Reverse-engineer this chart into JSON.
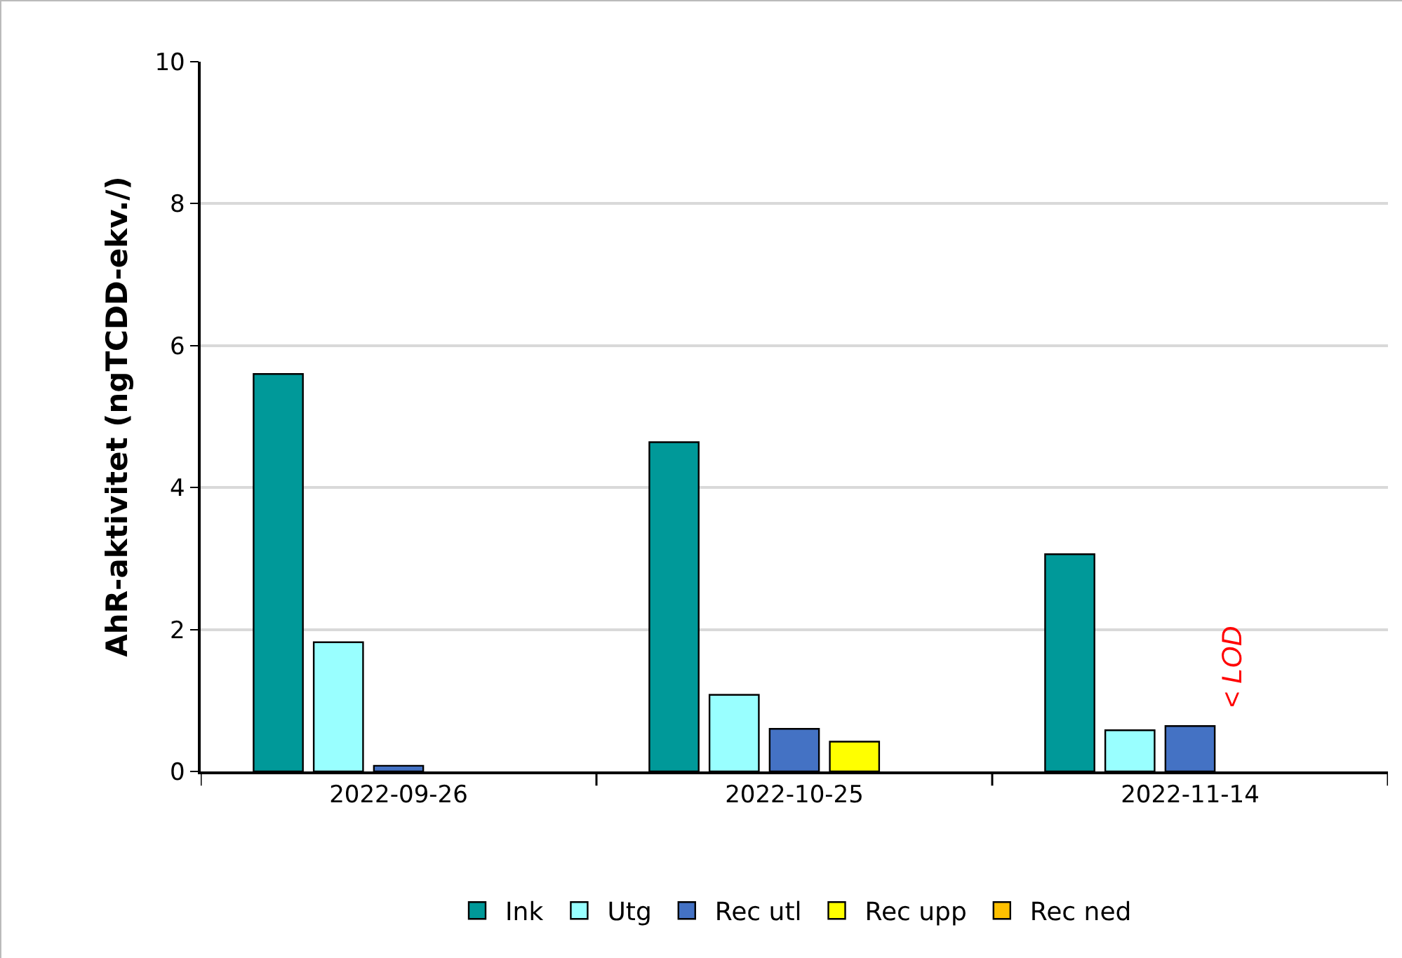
{
  "chart_data": {
    "type": "bar",
    "ylabel": "AhR-aktivitet (ngTCDD-ekv./)",
    "categories": [
      "2022-09-26",
      "2022-10-25",
      "2022-11-14"
    ],
    "series": [
      {
        "name": "Ink",
        "color": "#009999",
        "values": [
          5.6,
          4.64,
          3.06
        ]
      },
      {
        "name": "Utg",
        "color": "#99ffff",
        "values": [
          1.82,
          1.08,
          0.58
        ]
      },
      {
        "name": "Rec utl",
        "color": "#4472c4",
        "values": [
          0.08,
          0.6,
          0.64
        ]
      },
      {
        "name": "Rec upp",
        "color": "#ffff00",
        "values": [
          null,
          0.42,
          null
        ]
      },
      {
        "name": "Rec ned",
        "color": "#ffc000",
        "values": [
          null,
          null,
          null
        ]
      }
    ],
    "ylim": [
      0,
      10
    ],
    "yticks": [
      0,
      2,
      4,
      6,
      8,
      10
    ],
    "grid": "y",
    "legend": "bottom",
    "annotations": [
      "< LOD"
    ]
  }
}
